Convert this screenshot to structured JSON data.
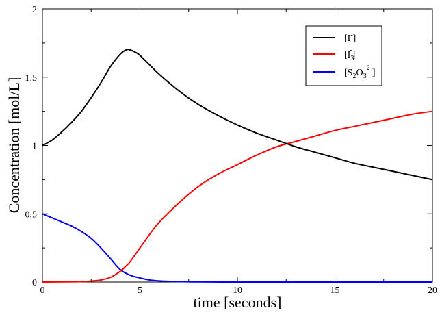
{
  "chart_data": {
    "type": "line",
    "title": "",
    "xlabel": "time [seconds]",
    "ylabel": "Concentration [mol/L]",
    "xlim": [
      0,
      20
    ],
    "ylim": [
      0,
      2
    ],
    "xticks": [
      0,
      5,
      10,
      15,
      20
    ],
    "yticks": [
      0,
      0.5,
      1,
      1.5,
      2
    ],
    "xtick_labels": [
      "0",
      "5",
      "10",
      "15",
      "20"
    ],
    "ytick_labels": [
      "0",
      "0.5",
      "1",
      "1.5",
      "2"
    ],
    "grid": false,
    "legend_position": "top-right",
    "legend": {
      "iodide": {
        "base": "[I",
        "sup": "-",
        "close": "]"
      },
      "triiodide": {
        "base": "[I",
        "sub": "3",
        "sup": "-",
        "close": "]"
      },
      "thiosulfate": {
        "base": "[S",
        "sub1": "2",
        "mid": "O",
        "sub2": "3",
        "sup": "2-",
        "close": "]"
      }
    },
    "series": [
      {
        "key": "iodide",
        "color": "#000000",
        "x": [
          0,
          0.5,
          1,
          1.5,
          2,
          2.5,
          3,
          3.5,
          4,
          4.3,
          4.5,
          4.8,
          5,
          5.5,
          6,
          7,
          8,
          9,
          10,
          11,
          12,
          13,
          14,
          15,
          16,
          17,
          18,
          19,
          20
        ],
        "y": [
          1.0,
          1.04,
          1.1,
          1.17,
          1.25,
          1.35,
          1.46,
          1.58,
          1.67,
          1.7,
          1.7,
          1.68,
          1.66,
          1.59,
          1.52,
          1.4,
          1.3,
          1.22,
          1.15,
          1.09,
          1.04,
          0.99,
          0.95,
          0.91,
          0.87,
          0.84,
          0.81,
          0.78,
          0.75
        ]
      },
      {
        "key": "triiodide",
        "color": "#ff0000",
        "x": [
          0,
          1,
          2,
          2.5,
          3,
          3.5,
          4,
          4.3,
          4.5,
          5,
          5.5,
          6,
          7,
          8,
          9,
          10,
          11,
          12,
          13,
          14,
          15,
          16,
          17,
          18,
          19,
          20
        ],
        "y": [
          0.0,
          0.001,
          0.003,
          0.007,
          0.015,
          0.035,
          0.08,
          0.12,
          0.15,
          0.25,
          0.35,
          0.44,
          0.58,
          0.7,
          0.79,
          0.86,
          0.93,
          0.99,
          1.03,
          1.07,
          1.11,
          1.14,
          1.17,
          1.2,
          1.23,
          1.25
        ]
      },
      {
        "key": "thiosulfate",
        "color": "#0000ff",
        "x": [
          0,
          0.5,
          1,
          1.5,
          2,
          2.5,
          3,
          3.5,
          4,
          4.5,
          5,
          5.5,
          6,
          7,
          8,
          10,
          12,
          15,
          20
        ],
        "y": [
          0.5,
          0.47,
          0.44,
          0.41,
          0.37,
          0.32,
          0.25,
          0.17,
          0.09,
          0.05,
          0.03,
          0.015,
          0.008,
          0.003,
          0.001,
          0.0,
          0.0,
          0.0,
          0.0
        ]
      }
    ]
  }
}
